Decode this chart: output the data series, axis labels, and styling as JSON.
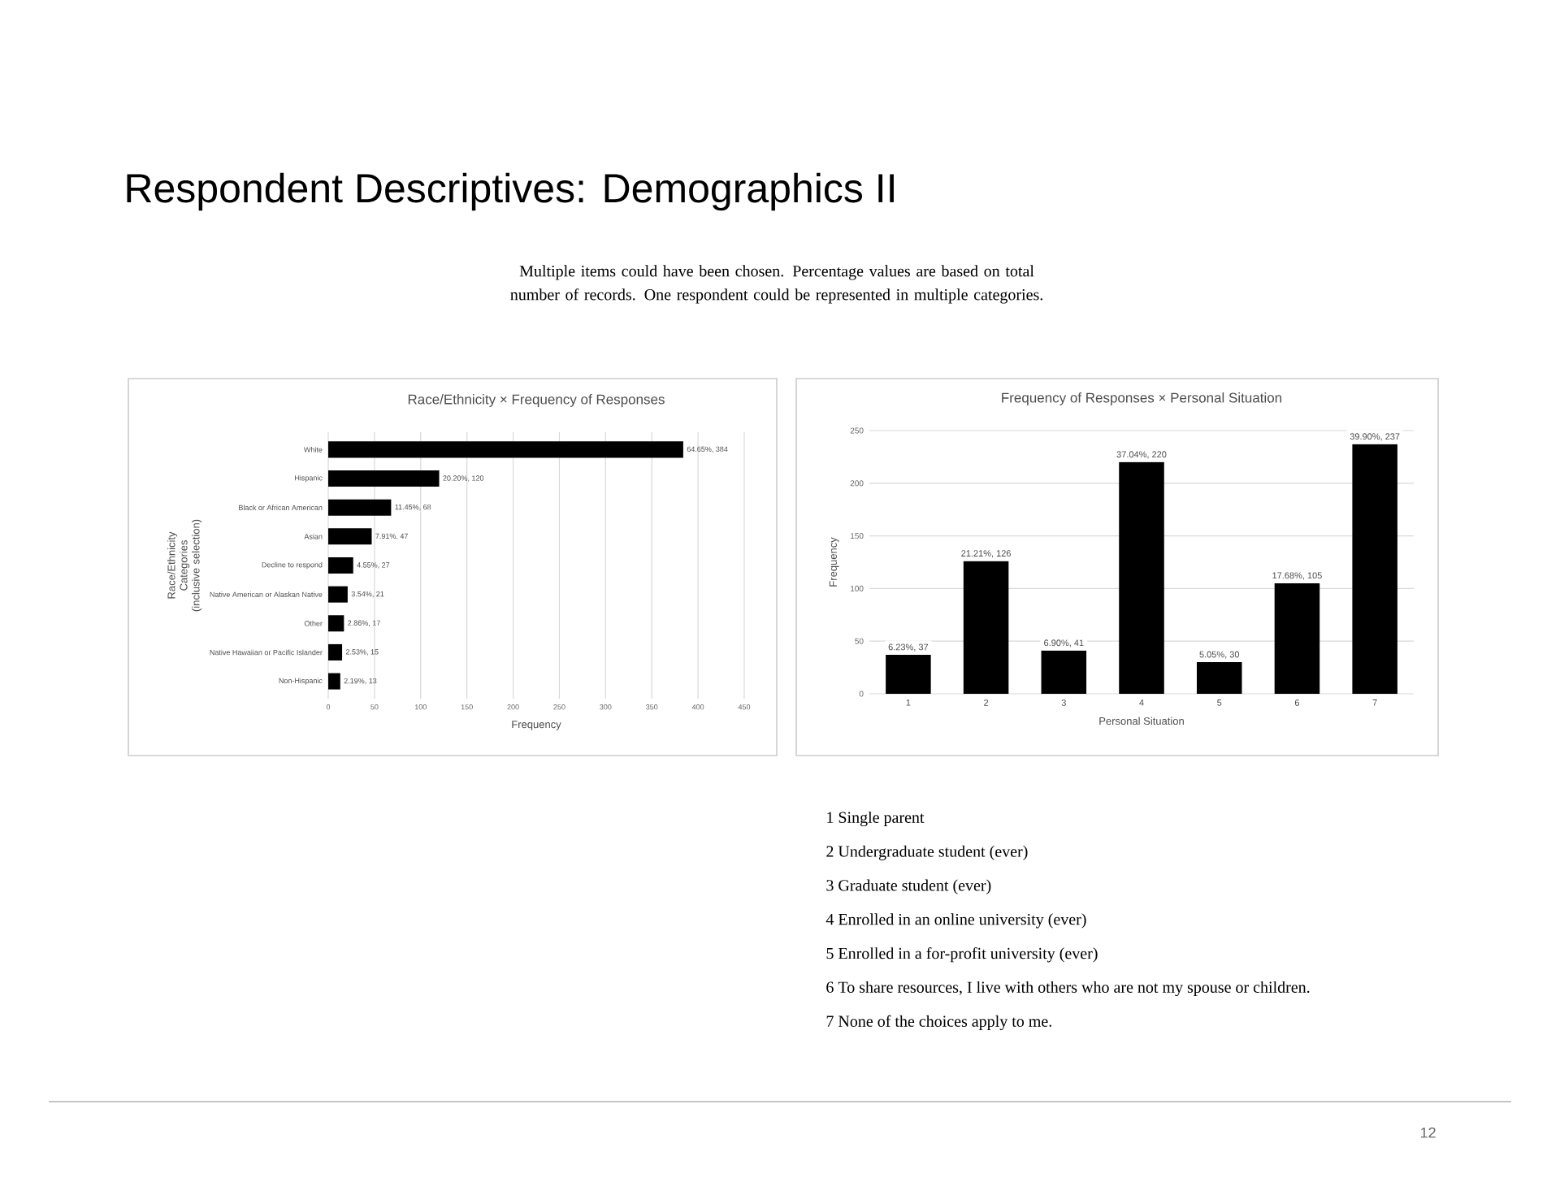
{
  "chart_data": [
    {
      "type": "bar",
      "orientation": "horizontal",
      "title": "Race/Ethnicity × Frequency of Responses",
      "xlabel": "Frequency",
      "ylabel": "Race/Ethnicity Categories (inclusive selection)",
      "categories": [
        "White",
        "Hispanic",
        "Black or African American",
        "Asian",
        "Decline to respond",
        "Native American or Alaskan Native",
        "Other",
        "Native Hawaiian or Pacific Islander",
        "Non-Hispanic"
      ],
      "values": [
        384,
        120,
        68,
        47,
        27,
        21,
        17,
        15,
        13
      ],
      "value_labels": [
        "64.65%, 384",
        "20.20%, 120",
        "11.45%, 68",
        "7.91%, 47",
        "4.55%, 27",
        "3.54%, 21",
        "2.86%, 17",
        "2.53%, 15",
        "2.19%, 13"
      ],
      "color": "#000000",
      "xlim": [
        0,
        450
      ],
      "xticks": [
        0,
        50,
        100,
        150,
        200,
        250,
        300,
        350,
        400,
        450
      ],
      "grid": "x",
      "annotations": [
        "Respondent Descriptives: Demographics II",
        "Multiple items could have been chosen. Percentage values are based on total number of records. One respondent could be represented in multiple categories."
      ]
    },
    {
      "type": "bar",
      "title": "Frequency of Responses × Personal Situation",
      "xlabel": "Personal Situation",
      "ylabel": "Frequency",
      "categories": [
        "1",
        "2",
        "3",
        "4",
        "5",
        "6",
        "7"
      ],
      "values": [
        37,
        126,
        41,
        220,
        30,
        105,
        237
      ],
      "value_labels": [
        "6.23%, 37",
        "21.21%, 126",
        "6.90%, 41",
        "37.04%, 220",
        "5.05%, 30",
        "17.68%, 105",
        "39.90%, 237"
      ],
      "color": "#000000",
      "ylim": [
        0,
        250
      ],
      "yticks": [
        0,
        50,
        100,
        150,
        200,
        250
      ],
      "grid": "y",
      "annotations": [
        "1  Single parent",
        "2  Undergraduate student (ever)",
        "3  Graduate student (ever)",
        "4  Enrolled in an online university (ever)",
        "5  Enrolled in a for-profit university (ever)",
        "6  To share resources, I live with others who are not my spouse or children.",
        "7  None of the choices apply to me.",
        "12"
      ]
    }
  ]
}
